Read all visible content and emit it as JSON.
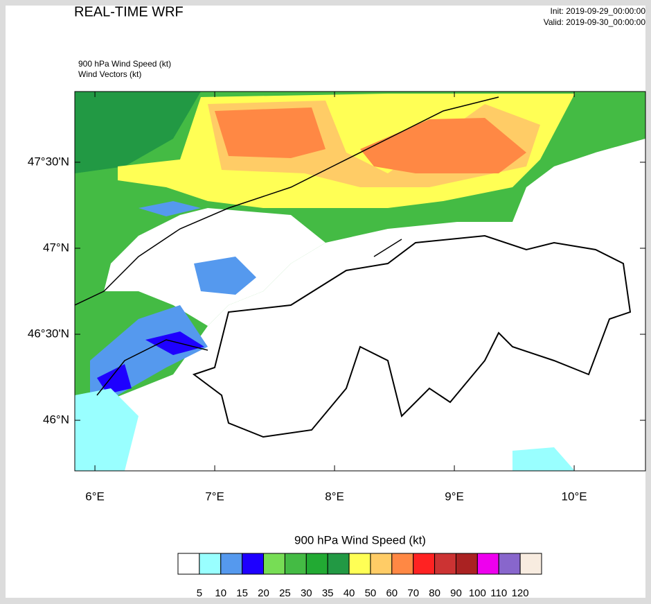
{
  "header": {
    "title": "REAL-TIME WRF",
    "init": "Init: 2019-09-29_00:00:00",
    "valid": "Valid: 2019-09-30_00:00:00",
    "field_label": "900 hPa Wind Speed   (kt)",
    "vector_label": "Wind Vectors   (kt)"
  },
  "map": {
    "lon_range": [
      5.832,
      10.595
    ],
    "lat_range": [
      45.706,
      47.911
    ],
    "lon_ticks": [
      {
        "value": 6,
        "label": "6°E"
      },
      {
        "value": 7,
        "label": "7°E"
      },
      {
        "value": 8,
        "label": "8°E"
      },
      {
        "value": 9,
        "label": "9°E"
      },
      {
        "value": 10,
        "label": "10°E"
      }
    ],
    "lat_ticks": [
      {
        "value": 46,
        "label": "46°N"
      },
      {
        "value": 46.5,
        "label": "46°30'N"
      },
      {
        "value": 47,
        "label": "47°N"
      },
      {
        "value": 47.5,
        "label": "47°30'N"
      }
    ]
  },
  "colorbar": {
    "title": "900 hPa Wind Speed  (kt)",
    "levels": [
      5,
      10,
      15,
      20,
      25,
      30,
      35,
      40,
      50,
      60,
      70,
      80,
      90,
      100,
      110,
      120
    ],
    "colors": [
      "#ffffff",
      "#99ffff",
      "#5599ee",
      "#1e00ff",
      "#77dd55",
      "#44bb44",
      "#22aa33",
      "#229944",
      "#ffff55",
      "#ffcc66",
      "#ff8844",
      "#ff2222",
      "#cc3333",
      "#aa2222",
      "#ee00ee",
      "#8866cc",
      "#f8ece0"
    ]
  }
}
